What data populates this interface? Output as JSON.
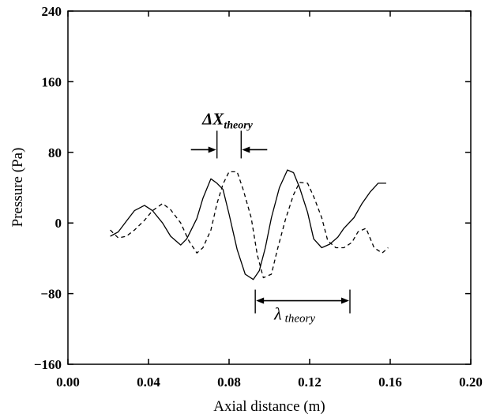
{
  "chart_data": {
    "type": "line",
    "xlabel": "Axial distance (m)",
    "ylabel": "Pressure (Pa)",
    "xlim": [
      0.0,
      0.2
    ],
    "ylim": [
      -160,
      240
    ],
    "xticks": [
      0.0,
      0.04,
      0.08,
      0.12,
      0.16,
      0.2
    ],
    "xtick_labels": [
      "0.00",
      "0.04",
      "0.08",
      "0.12",
      "0.16",
      "0.20"
    ],
    "yticks": [
      -160,
      -80,
      0,
      80,
      160,
      240
    ],
    "ytick_labels": [
      "−160",
      "−80",
      "0",
      "80",
      "160",
      "240"
    ],
    "grid": false,
    "series": [
      {
        "style": "solid",
        "x": [
          0.021,
          0.025,
          0.029,
          0.033,
          0.038,
          0.042,
          0.047,
          0.051,
          0.056,
          0.059,
          0.064,
          0.067,
          0.071,
          0.074,
          0.077,
          0.08,
          0.084,
          0.088,
          0.092,
          0.095,
          0.098,
          0.101,
          0.105,
          0.109,
          0.112,
          0.115,
          0.119,
          0.122,
          0.126,
          0.13,
          0.134,
          0.137,
          0.142,
          0.146,
          0.15,
          0.154,
          0.158
        ],
        "y": [
          -15,
          -10,
          2,
          14,
          20,
          14,
          0,
          -15,
          -25,
          -18,
          5,
          28,
          50,
          45,
          38,
          10,
          -30,
          -58,
          -64,
          -54,
          -28,
          6,
          40,
          60,
          57,
          40,
          12,
          -18,
          -28,
          -24,
          -16,
          -6,
          6,
          22,
          35,
          45,
          45
        ]
      },
      {
        "style": "dashed",
        "x": [
          0.021,
          0.025,
          0.029,
          0.033,
          0.038,
          0.042,
          0.047,
          0.051,
          0.056,
          0.06,
          0.064,
          0.067,
          0.071,
          0.074,
          0.077,
          0.08,
          0.084,
          0.087,
          0.091,
          0.094,
          0.097,
          0.101,
          0.104,
          0.108,
          0.112,
          0.115,
          0.119,
          0.122,
          0.126,
          0.129,
          0.133,
          0.137,
          0.141,
          0.144,
          0.148,
          0.152,
          0.156,
          0.159
        ],
        "y": [
          -8,
          -17,
          -15,
          -8,
          3,
          14,
          22,
          15,
          0,
          -20,
          -34,
          -28,
          -8,
          22,
          44,
          58,
          58,
          38,
          6,
          -36,
          -62,
          -58,
          -30,
          4,
          32,
          46,
          45,
          30,
          6,
          -20,
          -28,
          -28,
          -22,
          -10,
          -6,
          -28,
          -34,
          -28
        ]
      }
    ],
    "annotations": {
      "delta_x": {
        "symbol": "ΔX",
        "subscript": "theory",
        "x_start": 0.074,
        "x_end": 0.086,
        "y": 83
      },
      "wavelength": {
        "symbol": "λ",
        "subscript": "theory",
        "x_start": 0.093,
        "x_end": 0.14,
        "y": -88
      }
    }
  }
}
